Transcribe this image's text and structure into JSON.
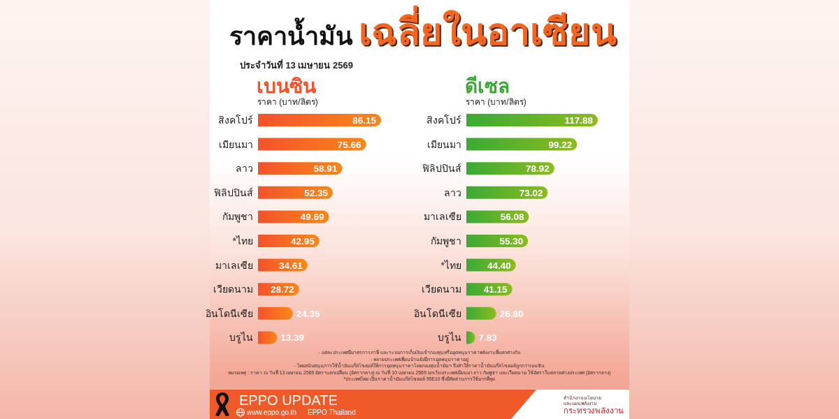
{
  "chart_data": [
    {
      "type": "other",
      "title": "ราคาน้ำมัน**เฉลี่ยในอาเซียน**",
      "subtitle": "ประจำวันที่ 13 เมษายน 2569"
    },
    {
      "type": "bar",
      "orientation": "horizontal",
      "title": "เบนซิน",
      "subtitle": "ราคา (บาท/ลิตร)",
      "categories": [
        "สิงคโปร์",
        "เมียนมา",
        "ลาว",
        "ฟิลิปปินส์",
        "กัมพูชา",
        "*ไทย",
        "มาเลเซีย",
        "เวียดนาม",
        "อินโดนีเซีย",
        "บรูไน"
      ],
      "values": [
        86.15,
        75.66,
        58.91,
        52.35,
        49.69,
        42.95,
        34.61,
        28.72,
        24.35,
        13.39
      ],
      "value_labels": [
        "86.15",
        "75.66",
        "58.91",
        "52.35",
        "49.69",
        "42.95",
        "34.61",
        "28.72",
        "24.35",
        "13.39"
      ],
      "color": "#f4522b"
    },
    {
      "type": "bar",
      "orientation": "horizontal",
      "title": "ดีเซล",
      "subtitle": "ราคา (บาท/ลิตร)",
      "categories": [
        "สิงคโปร์",
        "เมียนมา",
        "ฟิลิปปินส์",
        "ลาว",
        "มาเลเซีย",
        "กัมพูชา",
        "*ไทย",
        "เวียดนาม",
        "อินโดนีเซีย",
        "บรูไน"
      ],
      "values": [
        117.88,
        99.22,
        78.92,
        73.02,
        56.08,
        55.3,
        44.4,
        41.15,
        26.8,
        7.83
      ],
      "value_labels": [
        "117.88",
        "99.22",
        "78.92",
        "73.02",
        "56.08",
        "55.30",
        "44.40",
        "41.15",
        "26.80",
        "7.83"
      ],
      "color": "#3aaa35"
    },
    {
      "type": "other",
      "annotations": [
        "- แต่ละประเทศมีมาตรการภาษี และระบบการเก็บเงินเข้ากองทุนหรืออุดหนุนราคาพลังงานที่แตกต่างกัน",
        "- หลายประเทศเพื่อนบ้านยังมีการอุดหนุนราคาอยู่",
        "- ไทยสนับสนุนการใช้น้ำมันแก๊สโซฮอล์ให้การอุดหนุนราคาโดยกองทุนน้ำมันฯ จึงทำให้ราคาน้ำมันแก๊สโซฮอล์ถูกกว่าเบนซิน",
        "หมายเหตุ : ราคา ณ วันที่ 13 เมษายน 2569 อัตราแลกเปลี่ยน (อัตรากลาง) ณ วันที่ 10 เมษายน 2569 ยกเว้นประเทศเมียนมา ลาว กัมพูชา และเวียดนาม ใช้อัตราในตลาดต่างประเทศ (อัตรากลาง)",
        "*ประเทศไทย เป็นราคาน้ำมันแก๊สโซฮอล์ 95E10 ซึ่งมีสัดส่วนการใช้มากที่สุด"
      ]
    },
    {
      "type": "other",
      "title": "EPPO UPDATE",
      "annotations": [
        "www.eppo.go.th",
        "EPPO Thailand",
        "สำนักงานนโยบาย",
        "และแผนพลังงาน",
        "กระทรวงพลังงาน"
      ]
    }
  ]
}
